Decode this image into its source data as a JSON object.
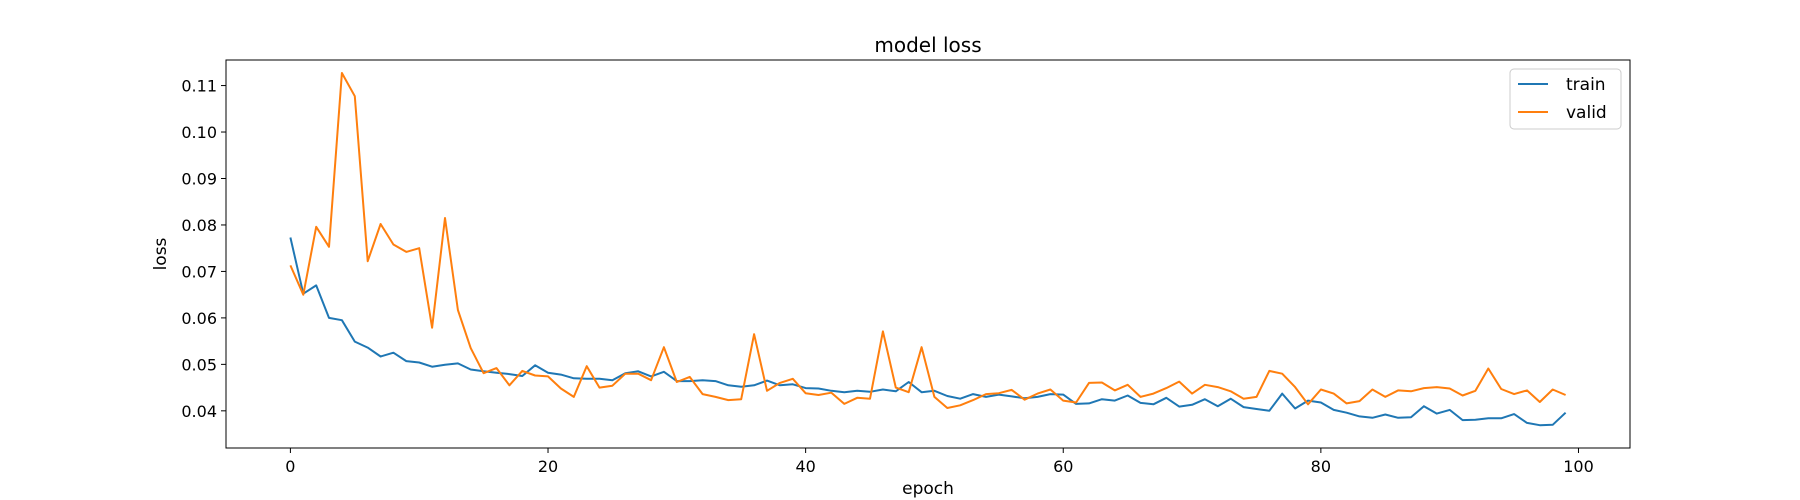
{
  "chart_data": {
    "type": "line",
    "title": "model loss",
    "xlabel": "epoch",
    "ylabel": "loss",
    "xlim": [
      -5,
      104
    ],
    "ylim": [
      0.032,
      0.1155
    ],
    "xticks": [
      0,
      20,
      40,
      60,
      80,
      100
    ],
    "yticks": [
      0.04,
      0.05,
      0.06,
      0.07,
      0.08,
      0.09,
      0.1,
      0.11
    ],
    "ytick_labels": [
      "0.04",
      "0.05",
      "0.06",
      "0.07",
      "0.08",
      "0.09",
      "0.10",
      "0.11"
    ],
    "grid": false,
    "legend_position": "top-right",
    "x": [
      0,
      1,
      2,
      3,
      4,
      5,
      6,
      7,
      8,
      9,
      10,
      11,
      12,
      13,
      14,
      15,
      16,
      17,
      18,
      19,
      20,
      21,
      22,
      23,
      24,
      25,
      26,
      27,
      28,
      29,
      30,
      31,
      32,
      33,
      34,
      35,
      36,
      37,
      38,
      39,
      40,
      41,
      42,
      43,
      44,
      45,
      46,
      47,
      48,
      49,
      50,
      51,
      52,
      53,
      54,
      55,
      56,
      57,
      58,
      59,
      60,
      61,
      62,
      63,
      64,
      65,
      66,
      67,
      68,
      69,
      70,
      71,
      72,
      73,
      74,
      75,
      76,
      77,
      78,
      79,
      80,
      81,
      82,
      83,
      84,
      85,
      86,
      87,
      88,
      89,
      90,
      91,
      92,
      93,
      94,
      95,
      96,
      97,
      98,
      99
    ],
    "series": [
      {
        "name": "train",
        "color": "#1f77b4",
        "values": [
          0.0773,
          0.0652,
          0.067,
          0.06,
          0.0595,
          0.0549,
          0.0536,
          0.0517,
          0.0525,
          0.0507,
          0.0504,
          0.0495,
          0.0499,
          0.0502,
          0.0489,
          0.0485,
          0.0482,
          0.0479,
          0.0475,
          0.0498,
          0.0482,
          0.0478,
          0.047,
          0.0469,
          0.0469,
          0.0466,
          0.0481,
          0.0485,
          0.0474,
          0.0484,
          0.0464,
          0.0464,
          0.0466,
          0.0464,
          0.0455,
          0.0452,
          0.0455,
          0.0465,
          0.0455,
          0.0457,
          0.0449,
          0.0448,
          0.0443,
          0.044,
          0.0443,
          0.0441,
          0.0446,
          0.0442,
          0.0462,
          0.044,
          0.0443,
          0.0432,
          0.0426,
          0.0436,
          0.043,
          0.0435,
          0.0431,
          0.0427,
          0.043,
          0.0436,
          0.0435,
          0.0415,
          0.0416,
          0.0425,
          0.0422,
          0.0433,
          0.0417,
          0.0414,
          0.0428,
          0.0409,
          0.0413,
          0.0425,
          0.041,
          0.0426,
          0.0408,
          0.0404,
          0.04,
          0.0437,
          0.0405,
          0.0422,
          0.0418,
          0.0402,
          0.0396,
          0.0388,
          0.0385,
          0.0392,
          0.0385,
          0.0386,
          0.041,
          0.0394,
          0.0402,
          0.038,
          0.0381,
          0.0384,
          0.0384,
          0.0393,
          0.0374,
          0.0369,
          0.037,
          0.0396
        ]
      },
      {
        "name": "valid",
        "color": "#ff7f0e",
        "values": [
          0.0713,
          0.065,
          0.0796,
          0.0753,
          0.1127,
          0.1077,
          0.0722,
          0.0802,
          0.0758,
          0.0742,
          0.075,
          0.0579,
          0.0815,
          0.0617,
          0.0535,
          0.0481,
          0.0492,
          0.0455,
          0.0486,
          0.0476,
          0.0474,
          0.0448,
          0.043,
          0.0496,
          0.045,
          0.0454,
          0.048,
          0.048,
          0.0466,
          0.0537,
          0.0462,
          0.0473,
          0.0436,
          0.043,
          0.0423,
          0.0425,
          0.0565,
          0.0443,
          0.046,
          0.0469,
          0.0438,
          0.0434,
          0.0439,
          0.0415,
          0.0428,
          0.0426,
          0.0571,
          0.045,
          0.044,
          0.0537,
          0.043,
          0.0406,
          0.0412,
          0.0423,
          0.0436,
          0.0438,
          0.0445,
          0.0424,
          0.0437,
          0.0446,
          0.0422,
          0.0418,
          0.046,
          0.0461,
          0.0444,
          0.0456,
          0.043,
          0.0437,
          0.0449,
          0.0463,
          0.0437,
          0.0456,
          0.0451,
          0.0442,
          0.0426,
          0.043,
          0.0486,
          0.048,
          0.0451,
          0.0414,
          0.0446,
          0.0437,
          0.0416,
          0.0421,
          0.0446,
          0.043,
          0.0444,
          0.0442,
          0.0449,
          0.0451,
          0.0448,
          0.0433,
          0.0443,
          0.0491,
          0.0447,
          0.0436,
          0.0444,
          0.0419,
          0.0446,
          0.0434
        ]
      }
    ]
  }
}
